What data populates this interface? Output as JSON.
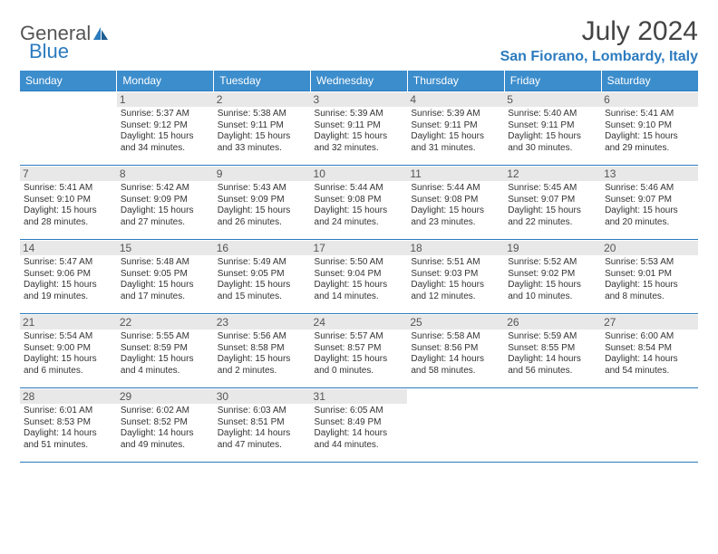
{
  "logo": {
    "word1": "General",
    "word2": "Blue"
  },
  "title": "July 2024",
  "location": "San Fiorano, Lombardy, Italy",
  "colors": {
    "header_bg": "#3c8dcc",
    "header_text": "#ffffff",
    "accent": "#2b7bbf",
    "daynum_bg": "#e8e8e8",
    "body_text": "#333333",
    "title_text": "#444444"
  },
  "weekdays": [
    "Sunday",
    "Monday",
    "Tuesday",
    "Wednesday",
    "Thursday",
    "Friday",
    "Saturday"
  ],
  "weeks": [
    [
      {
        "n": "",
        "l1": "",
        "l2": "",
        "l3": "",
        "l4": ""
      },
      {
        "n": "1",
        "l1": "Sunrise: 5:37 AM",
        "l2": "Sunset: 9:12 PM",
        "l3": "Daylight: 15 hours",
        "l4": "and 34 minutes."
      },
      {
        "n": "2",
        "l1": "Sunrise: 5:38 AM",
        "l2": "Sunset: 9:11 PM",
        "l3": "Daylight: 15 hours",
        "l4": "and 33 minutes."
      },
      {
        "n": "3",
        "l1": "Sunrise: 5:39 AM",
        "l2": "Sunset: 9:11 PM",
        "l3": "Daylight: 15 hours",
        "l4": "and 32 minutes."
      },
      {
        "n": "4",
        "l1": "Sunrise: 5:39 AM",
        "l2": "Sunset: 9:11 PM",
        "l3": "Daylight: 15 hours",
        "l4": "and 31 minutes."
      },
      {
        "n": "5",
        "l1": "Sunrise: 5:40 AM",
        "l2": "Sunset: 9:11 PM",
        "l3": "Daylight: 15 hours",
        "l4": "and 30 minutes."
      },
      {
        "n": "6",
        "l1": "Sunrise: 5:41 AM",
        "l2": "Sunset: 9:10 PM",
        "l3": "Daylight: 15 hours",
        "l4": "and 29 minutes."
      }
    ],
    [
      {
        "n": "7",
        "l1": "Sunrise: 5:41 AM",
        "l2": "Sunset: 9:10 PM",
        "l3": "Daylight: 15 hours",
        "l4": "and 28 minutes."
      },
      {
        "n": "8",
        "l1": "Sunrise: 5:42 AM",
        "l2": "Sunset: 9:09 PM",
        "l3": "Daylight: 15 hours",
        "l4": "and 27 minutes."
      },
      {
        "n": "9",
        "l1": "Sunrise: 5:43 AM",
        "l2": "Sunset: 9:09 PM",
        "l3": "Daylight: 15 hours",
        "l4": "and 26 minutes."
      },
      {
        "n": "10",
        "l1": "Sunrise: 5:44 AM",
        "l2": "Sunset: 9:08 PM",
        "l3": "Daylight: 15 hours",
        "l4": "and 24 minutes."
      },
      {
        "n": "11",
        "l1": "Sunrise: 5:44 AM",
        "l2": "Sunset: 9:08 PM",
        "l3": "Daylight: 15 hours",
        "l4": "and 23 minutes."
      },
      {
        "n": "12",
        "l1": "Sunrise: 5:45 AM",
        "l2": "Sunset: 9:07 PM",
        "l3": "Daylight: 15 hours",
        "l4": "and 22 minutes."
      },
      {
        "n": "13",
        "l1": "Sunrise: 5:46 AM",
        "l2": "Sunset: 9:07 PM",
        "l3": "Daylight: 15 hours",
        "l4": "and 20 minutes."
      }
    ],
    [
      {
        "n": "14",
        "l1": "Sunrise: 5:47 AM",
        "l2": "Sunset: 9:06 PM",
        "l3": "Daylight: 15 hours",
        "l4": "and 19 minutes."
      },
      {
        "n": "15",
        "l1": "Sunrise: 5:48 AM",
        "l2": "Sunset: 9:05 PM",
        "l3": "Daylight: 15 hours",
        "l4": "and 17 minutes."
      },
      {
        "n": "16",
        "l1": "Sunrise: 5:49 AM",
        "l2": "Sunset: 9:05 PM",
        "l3": "Daylight: 15 hours",
        "l4": "and 15 minutes."
      },
      {
        "n": "17",
        "l1": "Sunrise: 5:50 AM",
        "l2": "Sunset: 9:04 PM",
        "l3": "Daylight: 15 hours",
        "l4": "and 14 minutes."
      },
      {
        "n": "18",
        "l1": "Sunrise: 5:51 AM",
        "l2": "Sunset: 9:03 PM",
        "l3": "Daylight: 15 hours",
        "l4": "and 12 minutes."
      },
      {
        "n": "19",
        "l1": "Sunrise: 5:52 AM",
        "l2": "Sunset: 9:02 PM",
        "l3": "Daylight: 15 hours",
        "l4": "and 10 minutes."
      },
      {
        "n": "20",
        "l1": "Sunrise: 5:53 AM",
        "l2": "Sunset: 9:01 PM",
        "l3": "Daylight: 15 hours",
        "l4": "and 8 minutes."
      }
    ],
    [
      {
        "n": "21",
        "l1": "Sunrise: 5:54 AM",
        "l2": "Sunset: 9:00 PM",
        "l3": "Daylight: 15 hours",
        "l4": "and 6 minutes."
      },
      {
        "n": "22",
        "l1": "Sunrise: 5:55 AM",
        "l2": "Sunset: 8:59 PM",
        "l3": "Daylight: 15 hours",
        "l4": "and 4 minutes."
      },
      {
        "n": "23",
        "l1": "Sunrise: 5:56 AM",
        "l2": "Sunset: 8:58 PM",
        "l3": "Daylight: 15 hours",
        "l4": "and 2 minutes."
      },
      {
        "n": "24",
        "l1": "Sunrise: 5:57 AM",
        "l2": "Sunset: 8:57 PM",
        "l3": "Daylight: 15 hours",
        "l4": "and 0 minutes."
      },
      {
        "n": "25",
        "l1": "Sunrise: 5:58 AM",
        "l2": "Sunset: 8:56 PM",
        "l3": "Daylight: 14 hours",
        "l4": "and 58 minutes."
      },
      {
        "n": "26",
        "l1": "Sunrise: 5:59 AM",
        "l2": "Sunset: 8:55 PM",
        "l3": "Daylight: 14 hours",
        "l4": "and 56 minutes."
      },
      {
        "n": "27",
        "l1": "Sunrise: 6:00 AM",
        "l2": "Sunset: 8:54 PM",
        "l3": "Daylight: 14 hours",
        "l4": "and 54 minutes."
      }
    ],
    [
      {
        "n": "28",
        "l1": "Sunrise: 6:01 AM",
        "l2": "Sunset: 8:53 PM",
        "l3": "Daylight: 14 hours",
        "l4": "and 51 minutes."
      },
      {
        "n": "29",
        "l1": "Sunrise: 6:02 AM",
        "l2": "Sunset: 8:52 PM",
        "l3": "Daylight: 14 hours",
        "l4": "and 49 minutes."
      },
      {
        "n": "30",
        "l1": "Sunrise: 6:03 AM",
        "l2": "Sunset: 8:51 PM",
        "l3": "Daylight: 14 hours",
        "l4": "and 47 minutes."
      },
      {
        "n": "31",
        "l1": "Sunrise: 6:05 AM",
        "l2": "Sunset: 8:49 PM",
        "l3": "Daylight: 14 hours",
        "l4": "and 44 minutes."
      },
      {
        "n": "",
        "l1": "",
        "l2": "",
        "l3": "",
        "l4": ""
      },
      {
        "n": "",
        "l1": "",
        "l2": "",
        "l3": "",
        "l4": ""
      },
      {
        "n": "",
        "l1": "",
        "l2": "",
        "l3": "",
        "l4": ""
      }
    ]
  ]
}
